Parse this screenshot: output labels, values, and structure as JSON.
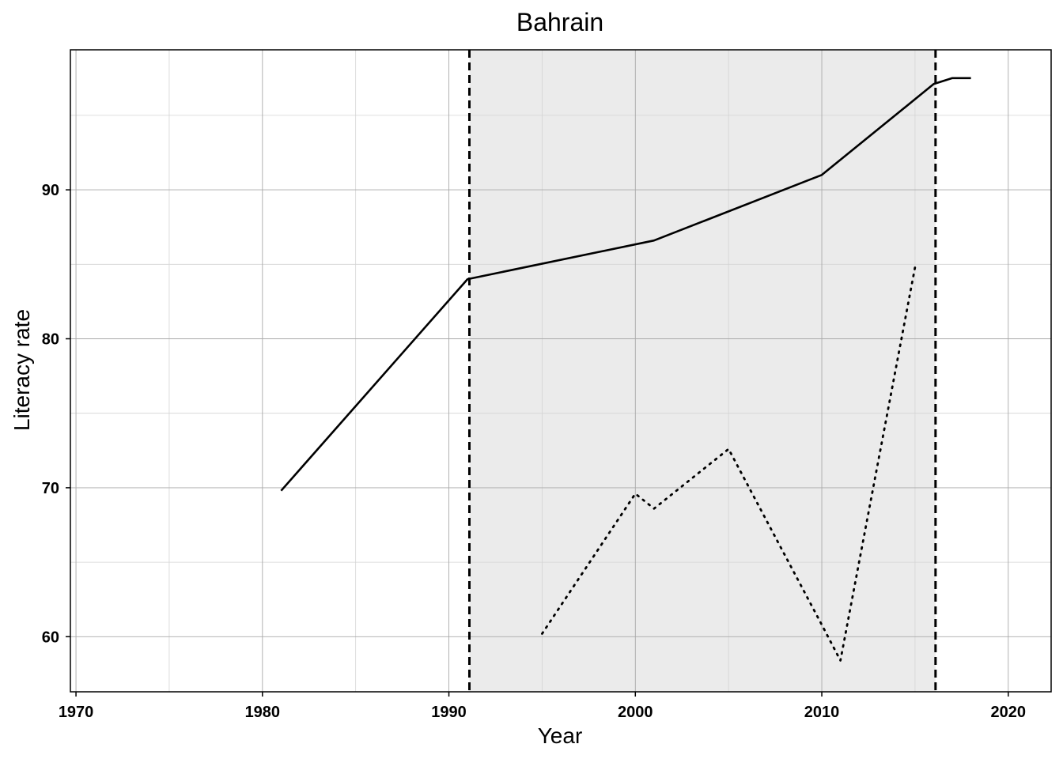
{
  "chart_data": {
    "type": "line",
    "title": "Bahrain",
    "xlabel": "Year",
    "ylabel": "Literacy rate",
    "xlim": [
      1969.7,
      2022.3
    ],
    "ylim": [
      56.3,
      99.4
    ],
    "x_ticks": [
      1970,
      1980,
      1990,
      2000,
      2010,
      2020
    ],
    "x_minor_ticks": [
      1975,
      1985,
      1995,
      2005,
      2015
    ],
    "y_ticks": [
      60,
      70,
      80,
      90
    ],
    "y_minor_ticks": [
      65,
      75,
      85,
      95
    ],
    "grid": true,
    "shaded_region": {
      "x": [
        1991.1,
        2016.1
      ],
      "color": "#ebebeb"
    },
    "vertical_lines": [
      {
        "x": 1991.1,
        "style": "dashed"
      },
      {
        "x": 2016.1,
        "style": "dashed"
      }
    ],
    "series": [
      {
        "style": "solid",
        "color": "#000000",
        "x": [
          1981,
          1991,
          2001,
          2010,
          2016,
          2017,
          2018
        ],
        "y": [
          69.8,
          84.0,
          86.6,
          91.0,
          97.1,
          97.5,
          97.5
        ]
      },
      {
        "style": "dotted",
        "color": "#000000",
        "x": [
          1995,
          2000,
          2001,
          2005,
          2010,
          2011,
          2015
        ],
        "y": [
          60.2,
          69.6,
          68.6,
          72.6,
          60.8,
          58.4,
          84.8
        ]
      }
    ]
  }
}
